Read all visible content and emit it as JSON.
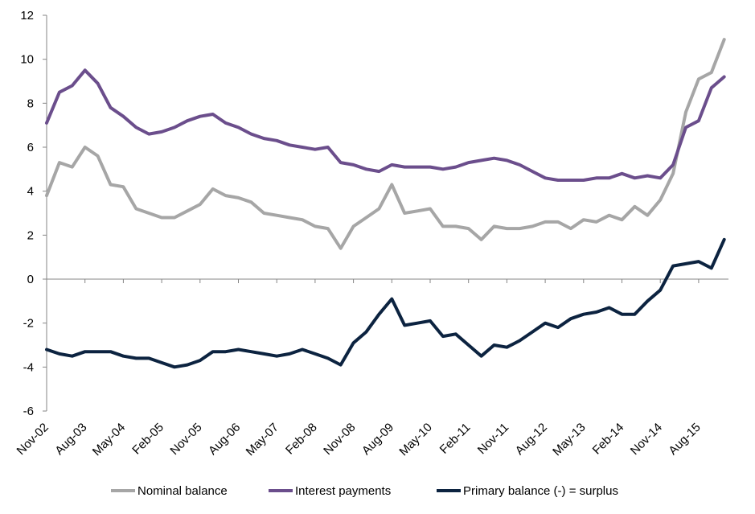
{
  "chart_data": {
    "type": "line",
    "title": "",
    "xlabel": "",
    "ylabel": "",
    "ylim": [
      -6,
      12
    ],
    "yticks": [
      -6,
      -4,
      -2,
      0,
      2,
      4,
      6,
      8,
      10,
      12
    ],
    "xticks": [
      "Nov-02",
      "Aug-03",
      "May-04",
      "Feb-05",
      "Nov-05",
      "Aug-06",
      "May-07",
      "Feb-08",
      "Nov-08",
      "Aug-09",
      "May-10",
      "Feb-11",
      "Nov-11",
      "Aug-12",
      "May-13",
      "Feb-14",
      "Nov-14",
      "Aug-15"
    ],
    "x_months": [
      0,
      3,
      6,
      9,
      12,
      15,
      18,
      21,
      24,
      27,
      30,
      33,
      36,
      39,
      42,
      45,
      48,
      51,
      54,
      57,
      60,
      63,
      66,
      69,
      72,
      75,
      78,
      81,
      84,
      87,
      90,
      93,
      96,
      99,
      102,
      105,
      108,
      111,
      114,
      117,
      120,
      123,
      126,
      129,
      132,
      135,
      138,
      141,
      144,
      147,
      150,
      153,
      156,
      159
    ],
    "legend_position": "bottom",
    "grid": false,
    "series": [
      {
        "name": "Nominal balance",
        "color": "#a6a6a6",
        "values": [
          3.8,
          5.3,
          5.1,
          6.0,
          5.6,
          4.3,
          4.2,
          3.2,
          3.0,
          2.8,
          2.8,
          3.1,
          3.4,
          4.1,
          3.8,
          3.7,
          3.5,
          3.0,
          2.9,
          2.8,
          2.7,
          2.4,
          2.3,
          1.4,
          2.4,
          2.8,
          3.2,
          4.3,
          3.0,
          3.1,
          3.2,
          2.4,
          2.4,
          2.3,
          1.8,
          2.4,
          2.3,
          2.3,
          2.4,
          2.6,
          2.6,
          2.3,
          2.7,
          2.6,
          2.9,
          2.7,
          3.3,
          2.9,
          3.6,
          4.8,
          7.6,
          9.1,
          9.4,
          10.9
        ]
      },
      {
        "name": "Interest payments",
        "color": "#6b4e8c",
        "values": [
          7.1,
          8.5,
          8.8,
          9.5,
          8.9,
          7.8,
          7.4,
          6.9,
          6.6,
          6.7,
          6.9,
          7.2,
          7.4,
          7.5,
          7.1,
          6.9,
          6.6,
          6.4,
          6.3,
          6.1,
          6.0,
          5.9,
          6.0,
          5.3,
          5.2,
          5.0,
          4.9,
          5.2,
          5.1,
          5.1,
          5.1,
          5.0,
          5.1,
          5.3,
          5.4,
          5.5,
          5.4,
          5.2,
          4.9,
          4.6,
          4.5,
          4.5,
          4.5,
          4.6,
          4.6,
          4.8,
          4.6,
          4.7,
          4.6,
          5.2,
          6.9,
          7.2,
          8.7,
          9.2
        ]
      },
      {
        "name": "Primary balance (-) = surplus",
        "color": "#0c2340",
        "values": [
          -3.2,
          -3.4,
          -3.5,
          -3.3,
          -3.3,
          -3.3,
          -3.5,
          -3.6,
          -3.6,
          -3.8,
          -4.0,
          -3.9,
          -3.7,
          -3.3,
          -3.3,
          -3.2,
          -3.3,
          -3.4,
          -3.5,
          -3.4,
          -3.2,
          -3.4,
          -3.6,
          -3.9,
          -2.9,
          -2.4,
          -1.6,
          -0.9,
          -2.1,
          -2.0,
          -1.9,
          -2.6,
          -2.5,
          -3.0,
          -3.5,
          -3.0,
          -3.1,
          -2.8,
          -2.4,
          -2.0,
          -2.2,
          -1.8,
          -1.6,
          -1.5,
          -1.3,
          -1.6,
          -1.6,
          -1.0,
          -0.5,
          0.6,
          0.7,
          0.8,
          0.5,
          1.8
        ]
      }
    ]
  }
}
